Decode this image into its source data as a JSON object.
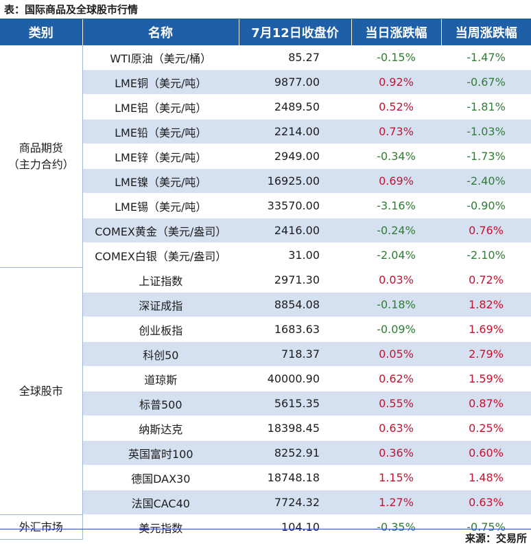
{
  "caption": "表：国际商品及全球股市行情",
  "headers": [
    "类别",
    "名称",
    "7月12日收盘价",
    "当日涨跌幅",
    "当周涨跌幅"
  ],
  "groups": [
    {
      "category_line1": "商品期货",
      "category_line2": "（主力合约）"
    },
    {
      "category_line1": "全球股市",
      "category_line2": ""
    },
    {
      "category_line1": "外汇市场",
      "category_line2": ""
    }
  ],
  "rows": [
    {
      "name": "WTI原油（美元/桶）",
      "price": "85.27",
      "day": "-0.15%",
      "day_dir": "down",
      "week": "-1.47%",
      "week_dir": "down"
    },
    {
      "name": "LME铜（美元/吨）",
      "price": "9877.00",
      "day": "0.92%",
      "day_dir": "up",
      "week": "-0.67%",
      "week_dir": "down"
    },
    {
      "name": "LME铝（美元/吨）",
      "price": "2489.50",
      "day": "0.52%",
      "day_dir": "up",
      "week": "-1.81%",
      "week_dir": "down"
    },
    {
      "name": "LME铅（美元/吨）",
      "price": "2214.00",
      "day": "0.73%",
      "day_dir": "up",
      "week": "-1.03%",
      "week_dir": "down"
    },
    {
      "name": "LME锌（美元/吨）",
      "price": "2949.00",
      "day": "-0.34%",
      "day_dir": "down",
      "week": "-1.73%",
      "week_dir": "down"
    },
    {
      "name": "LME镍（美元/吨）",
      "price": "16925.00",
      "day": "0.69%",
      "day_dir": "up",
      "week": "-2.40%",
      "week_dir": "down"
    },
    {
      "name": "LME锡（美元/吨）",
      "price": "33570.00",
      "day": "-3.16%",
      "day_dir": "down",
      "week": "-0.90%",
      "week_dir": "down"
    },
    {
      "name": "COMEX黄金（美元/盎司）",
      "price": "2416.00",
      "day": "-0.24%",
      "day_dir": "down",
      "week": "0.76%",
      "week_dir": "up"
    },
    {
      "name": "COMEX白银（美元/盎司）",
      "price": "31.00",
      "day": "-2.04%",
      "day_dir": "down",
      "week": "-2.10%",
      "week_dir": "down"
    },
    {
      "name": "上证指数",
      "price": "2971.30",
      "day": "0.03%",
      "day_dir": "up",
      "week": "0.72%",
      "week_dir": "up"
    },
    {
      "name": "深证成指",
      "price": "8854.08",
      "day": "-0.18%",
      "day_dir": "down",
      "week": "1.82%",
      "week_dir": "up"
    },
    {
      "name": "创业板指",
      "price": "1683.63",
      "day": "-0.09%",
      "day_dir": "down",
      "week": "1.69%",
      "week_dir": "up"
    },
    {
      "name": "科创50",
      "price": "718.37",
      "day": "0.05%",
      "day_dir": "up",
      "week": "2.79%",
      "week_dir": "up"
    },
    {
      "name": "道琼斯",
      "price": "40000.90",
      "day": "0.62%",
      "day_dir": "up",
      "week": "1.59%",
      "week_dir": "up"
    },
    {
      "name": "标普500",
      "price": "5615.35",
      "day": "0.55%",
      "day_dir": "up",
      "week": "0.87%",
      "week_dir": "up"
    },
    {
      "name": "纳斯达克",
      "price": "18398.45",
      "day": "0.63%",
      "day_dir": "up",
      "week": "0.25%",
      "week_dir": "up"
    },
    {
      "name": "英国富时100",
      "price": "8252.91",
      "day": "0.36%",
      "day_dir": "up",
      "week": "0.60%",
      "week_dir": "up"
    },
    {
      "name": "德国DAX30",
      "price": "18748.18",
      "day": "1.15%",
      "day_dir": "up",
      "week": "1.48%",
      "week_dir": "up"
    },
    {
      "name": "法国CAC40",
      "price": "7724.32",
      "day": "1.27%",
      "day_dir": "up",
      "week": "0.63%",
      "week_dir": "up"
    },
    {
      "name": "美元指数",
      "price": "104.10",
      "day": "-0.35%",
      "day_dir": "down",
      "week": "-0.75%",
      "week_dir": "down"
    }
  ],
  "source": "来源：交易所",
  "colors": {
    "header_bg": "#1f5fa7",
    "stripe": "#d5e1f1",
    "up": "#c8102e",
    "down": "#2e7d32"
  }
}
